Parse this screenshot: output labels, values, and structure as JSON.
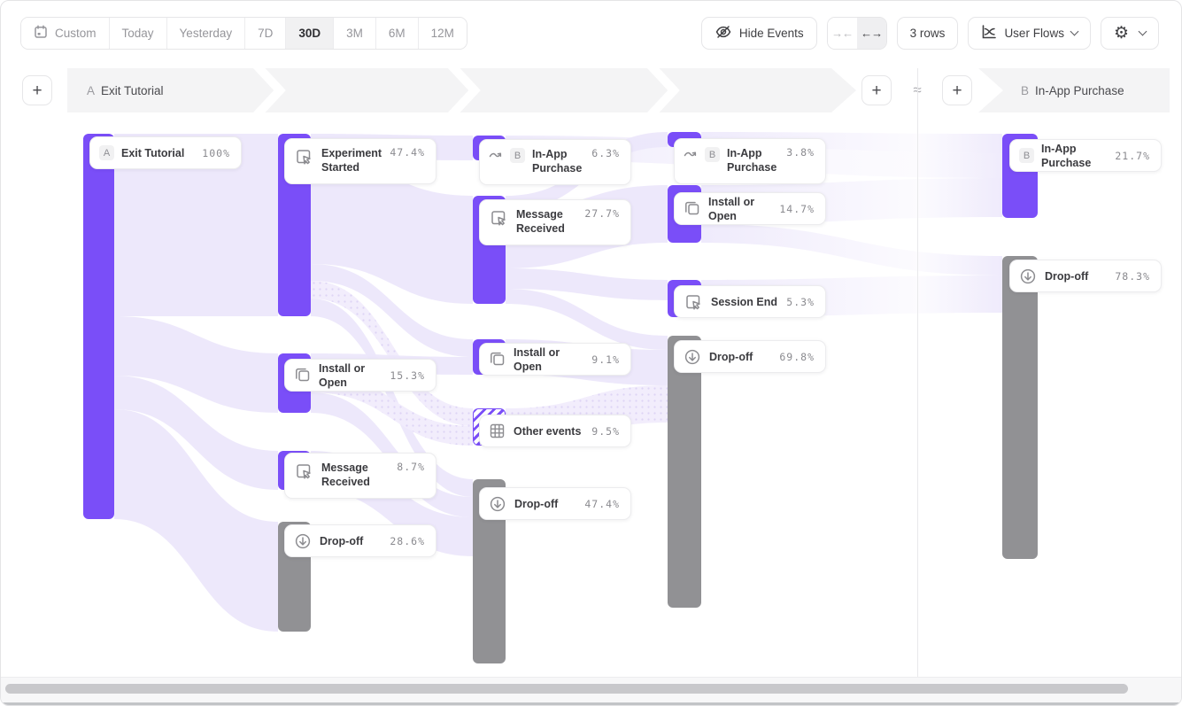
{
  "toolbar": {
    "date_presets": [
      {
        "label": "Custom",
        "selected": false,
        "has_calendar_icon": true
      },
      {
        "label": "Today",
        "selected": false
      },
      {
        "label": "Yesterday",
        "selected": false
      },
      {
        "label": "7D",
        "selected": false
      },
      {
        "label": "30D",
        "selected": true
      },
      {
        "label": "3M",
        "selected": false
      },
      {
        "label": "6M",
        "selected": false
      },
      {
        "label": "12M",
        "selected": false
      }
    ],
    "hide_events_label": "Hide Events",
    "collapse_glyph": "→←",
    "expand_glyph": "←→",
    "expand_selected": true,
    "rows_label": "3 rows",
    "view_label": "User Flows",
    "gear_glyph": "⚙"
  },
  "header": {
    "plus_glyph": "+",
    "approx_glyph": "≈",
    "flow_a": {
      "badge": "A",
      "label": "Exit Tutorial"
    },
    "flow_b": {
      "badge": "B",
      "label": "In-App Purchase"
    }
  },
  "colors": {
    "node_purple": "#7A4EF8",
    "node_gray": "#919194",
    "ribbon": "#ECE7FB",
    "band_gray": "#F4F4F5",
    "selected_bg": "#F1F1F2"
  },
  "chart_data": {
    "type": "sankey",
    "title": "User Flows: Exit Tutorial (A) to In-App Purchase (B)",
    "unit": "percent of users",
    "flow_a_start": "Exit Tutorial",
    "flow_b_end": "In-App Purchase",
    "columns": [
      {
        "step": 1,
        "nodes": [
          {
            "label": "Exit Tutorial",
            "value": "100%",
            "kind": "start-event",
            "badge": "A",
            "color": "purple",
            "icon": null,
            "bar": [
              93,
              150,
              35,
              435
            ],
            "card": [
              100,
              153,
              172,
              37
            ],
            "two_line": false
          }
        ]
      },
      {
        "step": 2,
        "nodes": [
          {
            "label": "Experiment Started",
            "value": "47.4%",
            "kind": "event",
            "color": "purple",
            "icon": "click",
            "bar": [
              313,
              150,
              37,
              206
            ],
            "card": [
              320,
              155,
              172,
              52
            ],
            "two_line": true
          },
          {
            "label": "Install or Open",
            "value": "15.3%",
            "kind": "event",
            "color": "purple",
            "icon": "copy",
            "bar": [
              313,
              398,
              37,
              67
            ],
            "card": [
              320,
              404,
              172,
              37
            ],
            "two_line": false
          },
          {
            "label": "Message Received",
            "value": "8.7%",
            "kind": "event",
            "color": "purple",
            "icon": "click",
            "bar": [
              313,
              508,
              37,
              44
            ],
            "card": [
              320,
              510,
              172,
              52
            ],
            "two_line": true
          },
          {
            "label": "Drop-off",
            "value": "28.6%",
            "kind": "drop-off",
            "color": "gray",
            "icon": "dropoff",
            "bar": [
              313,
              588,
              37,
              124
            ],
            "card": [
              320,
              591,
              172,
              37
            ],
            "two_line": false
          }
        ]
      },
      {
        "step": 3,
        "nodes": [
          {
            "label": "In-App Purchase",
            "value": "6.3%",
            "kind": "b-event",
            "badge": "B",
            "color": "purple",
            "icon": "jump",
            "bar": [
              533,
              152,
              37,
              28
            ],
            "card": [
              540,
              156,
              172,
              52
            ],
            "two_line": true
          },
          {
            "label": "Message Received",
            "value": "27.7%",
            "kind": "event",
            "color": "purple",
            "icon": "click",
            "bar": [
              533,
              220,
              37,
              122
            ],
            "card": [
              540,
              224,
              172,
              52
            ],
            "two_line": true
          },
          {
            "label": "Install or Open",
            "value": "9.1%",
            "kind": "event",
            "color": "purple",
            "icon": "copy",
            "bar": [
              533,
              382,
              37,
              40
            ],
            "card": [
              540,
              386,
              172,
              37
            ],
            "two_line": false
          },
          {
            "label": "Other events",
            "value": "9.5%",
            "kind": "other-events",
            "color": "hatch",
            "icon": "grid",
            "bar": [
              533,
              460,
              37,
              42
            ],
            "card": [
              540,
              467,
              172,
              37
            ],
            "two_line": false
          },
          {
            "label": "Drop-off",
            "value": "47.4%",
            "kind": "drop-off",
            "color": "gray",
            "icon": "dropoff",
            "bar": [
              533,
              540,
              37,
              208
            ],
            "card": [
              540,
              549,
              172,
              37
            ],
            "two_line": false
          }
        ]
      },
      {
        "step": 4,
        "nodes": [
          {
            "label": "In-App Purchase",
            "value": "3.8%",
            "kind": "b-event",
            "badge": "B",
            "color": "purple",
            "icon": "jump",
            "bar": [
              753,
              148,
              38,
              17
            ],
            "card": [
              760,
              155,
              172,
              52
            ],
            "two_line": true
          },
          {
            "label": "Install or Open",
            "value": "14.7%",
            "kind": "event",
            "color": "purple",
            "icon": "copy",
            "bar": [
              753,
              208,
              38,
              65
            ],
            "card": [
              760,
              216,
              172,
              37
            ],
            "two_line": false
          },
          {
            "label": "Session End",
            "value": "5.3%",
            "kind": "event",
            "color": "purple",
            "icon": "click",
            "bar": [
              753,
              315,
              38,
              42
            ],
            "card": [
              760,
              321,
              172,
              37
            ],
            "two_line": false
          },
          {
            "label": "Drop-off",
            "value": "69.8%",
            "kind": "drop-off",
            "color": "gray",
            "icon": "dropoff",
            "bar": [
              753,
              378,
              38,
              307
            ],
            "card": [
              760,
              383,
              172,
              37
            ],
            "two_line": false
          }
        ]
      },
      {
        "step": 5,
        "nodes": [
          {
            "label": "In-App Purchase",
            "value": "21.7%",
            "kind": "b-end-event",
            "badge": "B",
            "color": "purple",
            "icon": null,
            "bar": [
              1131,
              150,
              40,
              95
            ],
            "card": [
              1139,
              156,
              172,
              37
            ],
            "two_line": false
          },
          {
            "label": "Drop-off",
            "value": "78.3%",
            "kind": "drop-off",
            "color": "gray",
            "icon": "dropoff",
            "bar": [
              1131,
              288,
              40,
              342
            ],
            "card": [
              1139,
              292,
              172,
              37
            ],
            "two_line": false
          }
        ]
      }
    ]
  }
}
